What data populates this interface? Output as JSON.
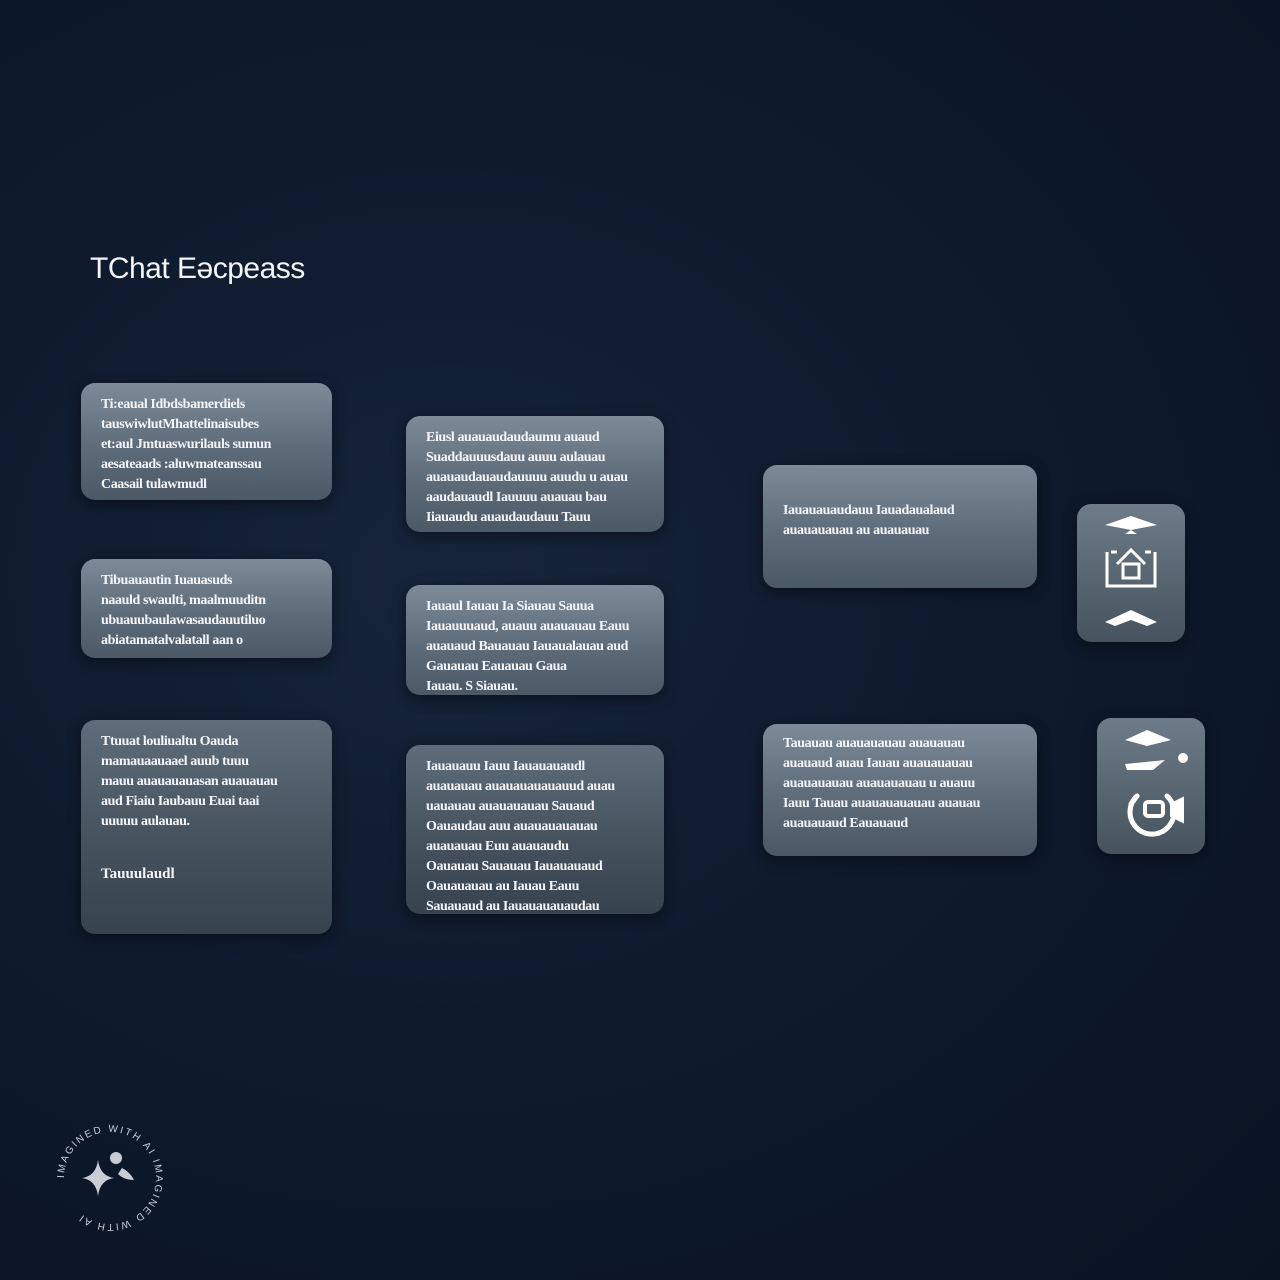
{
  "header": {
    "title": "TChat Eəcpeass"
  },
  "columns": [
    {
      "cards": [
        {
          "lines": [
            "Ti:eaual Idbdsbamerdiels",
            "tauswiwlutMhattelinaisubes",
            "et:aul Jmtuaswurilauls sumun",
            "aesateaads :aluwmateanssau",
            "Caasail tulawmudl"
          ]
        },
        {
          "lines": [
            "Tibuauautin Iuauasuds",
            "naauld swaulti, maalmuuditn",
            "ubuauubaulawasaudauutiluo",
            "abiatamatalvalatall aan o"
          ]
        },
        {
          "lines": [
            "Ttuuat louliualtu Oauda",
            "mamauaauaael auub tuuu",
            "mauu auauauauasan auauauau",
            "aud Fiaiu Iaubauu Euai taai",
            "uuuuu aulauau."
          ],
          "footer": "Tauuulaudl"
        }
      ]
    },
    {
      "cards": [
        {
          "lines": [
            "Eiusl  auauaudaudaumu auaud",
            "Suaddauuusdauu auuu aulauau",
            "auauaudauaudauuuu auudu u auau",
            "aaudauaudl  Iauuuu auauau bau",
            "Iiauaudu  auaudaudauu      Tauu"
          ]
        },
        {
          "lines": [
            "Iauaul Iauau Ia    Siauau  Sauua",
            "Iauauuuaud, auauu auauauau Eauu",
            "auauaud Bauauau Iauaualauau aud",
            "Gauauau Eauauau Gaua",
            "Iauau. S  Siauau."
          ]
        },
        {
          "lines": [
            "Iauauauu  Iauu Iauauauaudl",
            "auauauau auauauauauauud auau",
            "uauauau auauauauau Sauaud",
            "Oauaudau auu  auauauauauau",
            "auauauau Euu auauaudu",
            "Oauauau Sauauau Iauauauaud",
            "Oauauauau au Iauau Eauu",
            "Sauauaud  au  Iauauauauaudau"
          ]
        }
      ]
    },
    {
      "cards": [
        {
          "lines": [
            "Iauauauaudauu Iauadaualaud",
            "auauauauau au auauauau"
          ]
        },
        {
          "lines": [
            "Tauauau auauauauau auauauau",
            "auauaud auau Iauau auauauauau",
            "auauauauau auauauauau u auauu",
            "Iauu Tauau auauauauauau auauau",
            "auauauaud Eauauaud"
          ]
        }
      ]
    }
  ],
  "icons": [
    "chevron-up-icon",
    "home-icon",
    "chevron-down-icon",
    "chevron-up-dot-icon",
    "slider-icon",
    "refresh-camera-icon"
  ],
  "watermark": {
    "text": "IMAGINED WITH AI IMAGINED WITH AI "
  }
}
